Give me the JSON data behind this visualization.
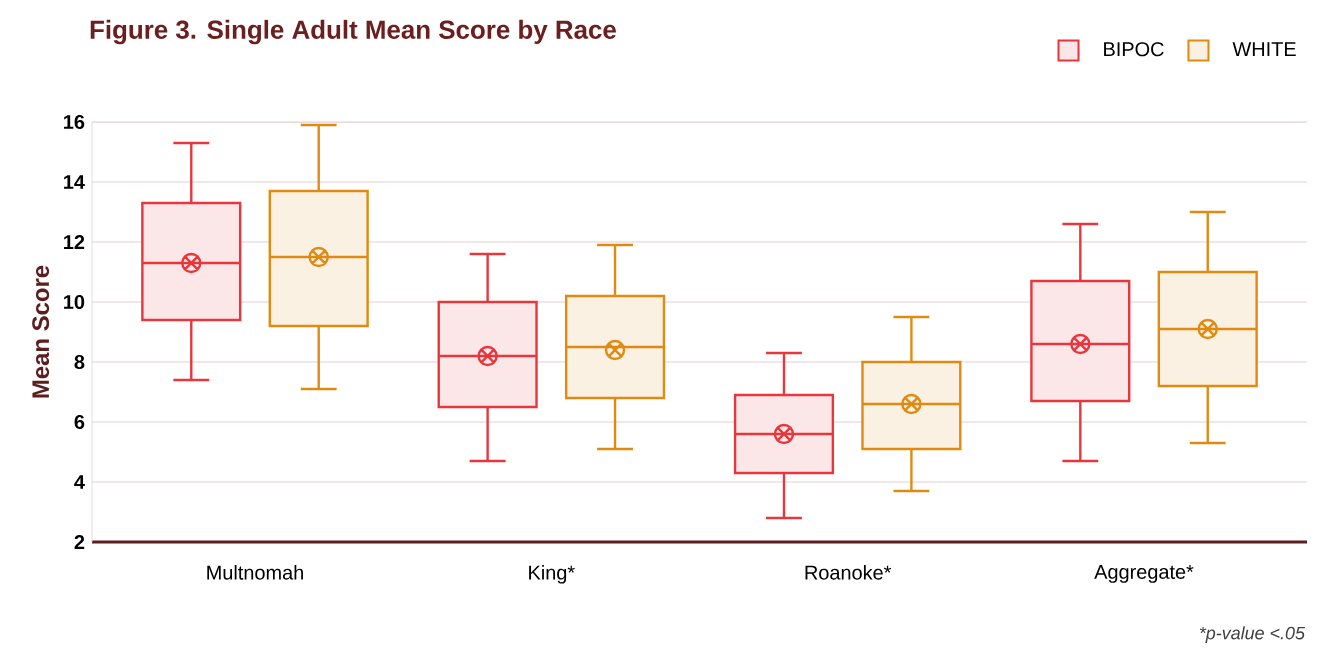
{
  "chart_data": {
    "type": "box",
    "title": "Figure 3. Single Adult Mean Score by Race",
    "ylabel": "Mean Score",
    "categories": [
      "Multnomah",
      "King*",
      "Roanoke*",
      "Aggregate*"
    ],
    "ylim": [
      2,
      16
    ],
    "yticks": [
      2,
      4,
      6,
      8,
      10,
      12,
      14,
      16
    ],
    "grid": "y",
    "legend": "top right",
    "annotations": [
      "*p-value <.05"
    ],
    "series": [
      {
        "name": "BIPOC",
        "color": "#e8363d",
        "boxes": [
          {
            "low": 7.4,
            "q1": 9.4,
            "median": 11.3,
            "q3": 13.3,
            "high": 15.3,
            "mean": 11.3
          },
          {
            "low": 4.7,
            "q1": 6.5,
            "median": 8.2,
            "q3": 10.0,
            "high": 11.6,
            "mean": 8.2
          },
          {
            "low": 2.8,
            "q1": 4.3,
            "median": 5.6,
            "q3": 6.9,
            "high": 8.3,
            "mean": 5.6
          },
          {
            "low": 4.7,
            "q1": 6.7,
            "median": 8.6,
            "q3": 10.7,
            "high": 12.6,
            "mean": 8.6
          }
        ]
      },
      {
        "name": "WHITE",
        "color": "#e08a12",
        "boxes": [
          {
            "low": 7.1,
            "q1": 9.2,
            "median": 11.5,
            "q3": 13.7,
            "high": 15.9,
            "mean": 11.5
          },
          {
            "low": 5.1,
            "q1": 6.8,
            "median": 8.5,
            "q3": 10.2,
            "high": 11.9,
            "mean": 8.4
          },
          {
            "low": 3.7,
            "q1": 5.1,
            "median": 6.6,
            "q3": 8.0,
            "high": 9.5,
            "mean": 6.6
          },
          {
            "low": 5.3,
            "q1": 7.2,
            "median": 9.1,
            "q3": 11.0,
            "high": 13.0,
            "mean": 9.1
          }
        ]
      }
    ]
  }
}
